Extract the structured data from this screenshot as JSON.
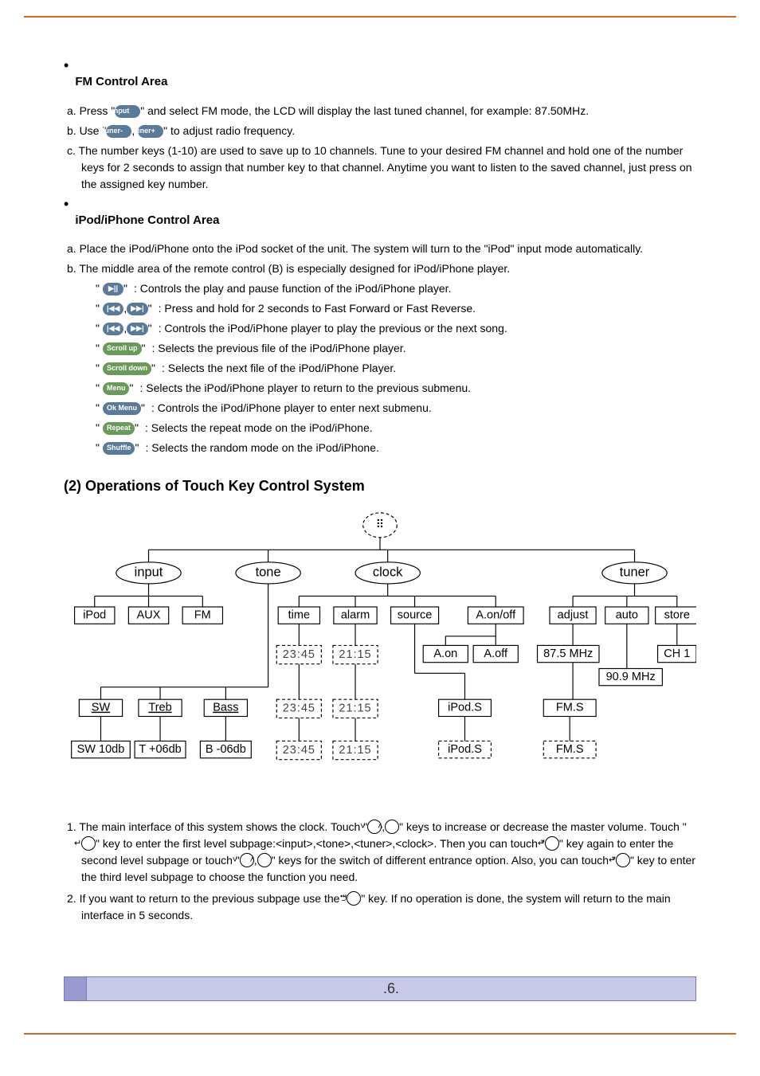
{
  "fm": {
    "title": "FM Control Area",
    "a_prefix": "a. Press \"",
    "a_btn": "Input",
    "a_suffix": "\" and select FM mode, the LCD will display the last tuned channel, for example: 87.50MHz.",
    "b_prefix": "b. Use \"",
    "b_btn1": "Tuner-",
    "b_sep": ",",
    "b_btn2": "Tuner+",
    "b_suffix": "\" to adjust radio frequency.",
    "c": "c. The number keys (1-10) are used to save up to 10 channels. Tune to your desired FM channel and hold one of the number keys for 2 seconds to assign that number key to that channel. Anytime you want to listen to the saved channel, just press on the assigned key number."
  },
  "ipod": {
    "title": "iPod/iPhone Control Area",
    "a": "a. Place the iPod/iPhone onto the iPod socket of the unit. The system will turn to the \"iPod\" input mode automatically.",
    "b": "b. The middle area of the remote control (B) is especially designed for iPod/iPhone player.",
    "rows": [
      {
        "btns": [
          "▶||"
        ],
        "color": "blue",
        "desc": ": Controls the play and pause function of the iPod/iPhone player."
      },
      {
        "btns": [
          "|◀◀",
          "▶▶|"
        ],
        "color": "blue",
        "desc": ": Press and hold for 2 seconds to Fast Forward or Fast Reverse."
      },
      {
        "btns": [
          "|◀◀",
          "▶▶|"
        ],
        "color": "blue",
        "desc": ": Controls the iPod/iPhone player to play the previous or the next song."
      },
      {
        "btns": [
          "Scroll up"
        ],
        "color": "green",
        "desc": ": Selects the previous file of the iPod/iPhone player."
      },
      {
        "btns": [
          "Scroll down"
        ],
        "color": "green",
        "desc": ": Selects the next file of the iPod/iPhone Player."
      },
      {
        "btns": [
          "Menu"
        ],
        "color": "green",
        "desc": ": Selects the iPod/iPhone player to return to the previous submenu."
      },
      {
        "btns": [
          "Ok Menu"
        ],
        "color": "blue",
        "wide": true,
        "desc": ": Controls the iPod/iPhone player to enter next submenu."
      },
      {
        "btns": [
          "Repeat"
        ],
        "color": "green",
        "desc": ": Selects the repeat mode on the iPod/iPhone."
      },
      {
        "btns": [
          "Shuffle"
        ],
        "color": "blue",
        "desc": ": Selects the random mode on the iPod/iPhone."
      }
    ]
  },
  "ops_title": "(2) Operations of Touch Key Control System",
  "diagram": {
    "root_glyph": "⠿",
    "level1": [
      "input",
      "tone",
      "clock",
      "tuner"
    ],
    "input_children": [
      "iPod",
      "AUX",
      "FM"
    ],
    "tone_children": [
      "SW",
      "Treb",
      "Bass"
    ],
    "tone_sub": [
      "SW 10db",
      "T +06db",
      "B -06db"
    ],
    "clock_children": [
      "time",
      "alarm",
      "source",
      "A.on/off"
    ],
    "time_vals": [
      "23:45",
      "23:45",
      "23:45"
    ],
    "alarm_vals": [
      "21:15",
      "21:15",
      "21:15"
    ],
    "source_vals": [
      "iPod.S",
      "iPod.S"
    ],
    "aon_vals": [
      "A.on",
      "A.off"
    ],
    "tuner_children": [
      "adjust",
      "auto",
      "store"
    ],
    "adjust_val": "87.5 MHz",
    "auto_val": "90.9 MHz",
    "store_val": "CH 1",
    "fms_vals": [
      "FM.S",
      "FM.S"
    ]
  },
  "p1_pre": "1. The main interface of this system shows the clock.  Touch \"",
  "p1_k1": "˅",
  "p1_mid1": ",",
  "p1_k2": "˄",
  "p1_mid2": "\" keys to increase or decrease the master volume.  Touch \"",
  "p1_k3": "↵",
  "p1_mid3": "\" key to enter the first level subpage:<input>,<tone>,<tuner>,<clock>. Then you can touch \"",
  "p1_k4": "↵",
  "p1_mid4": "\" key again to enter the second level subpage or touch \"",
  "p1_k5": "˅",
  "p1_mid5": ",",
  "p1_k6": "˄",
  "p1_mid6": "\" keys for the switch of different entrance option. Also, you can touch \"",
  "p1_k7": "↵",
  "p1_mid7": "\" key to enter the third level subpage to choose the function you need.",
  "p2_pre": "2. If you want to return to the previous subpage use the \"",
  "p2_k1": "⮌",
  "p2_suf": "\" key. If no operation is done, the system will return to the main interface in 5 seconds.",
  "page_num": ".6."
}
